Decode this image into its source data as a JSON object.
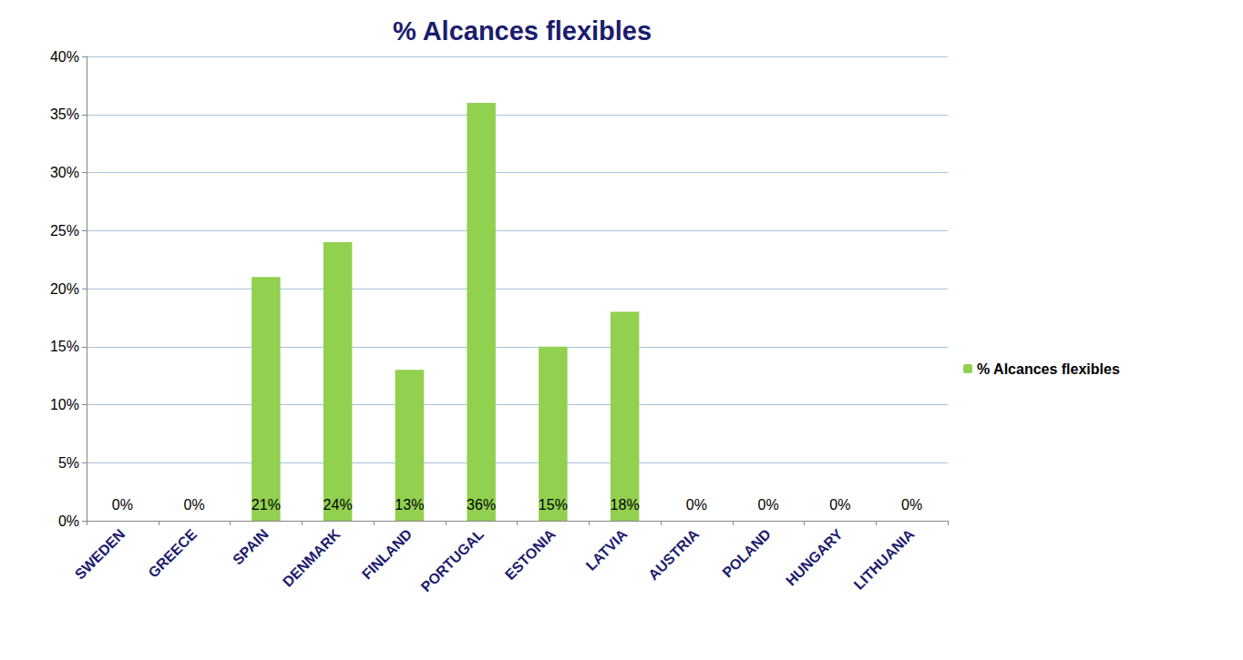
{
  "chart_data": {
    "type": "bar",
    "title": "% Alcances flexibles",
    "categories": [
      "SWEDEN",
      "GREECE",
      "SPAIN",
      "DENMARK",
      "FINLAND",
      "PORTUGAL",
      "ESTONIA",
      "LATVIA",
      "AUSTRIA",
      "POLAND",
      "HUNGARY",
      "LITHUANIA"
    ],
    "series": [
      {
        "name": "% Alcances flexibles",
        "color": "#92d050",
        "values": [
          0,
          0,
          21,
          24,
          13,
          36,
          15,
          18,
          0,
          0,
          0,
          0
        ],
        "value_labels": [
          "0%",
          "0%",
          "21%",
          "24%",
          "13%",
          "36%",
          "15%",
          "18%",
          "0%",
          "0%",
          "0%",
          "0%"
        ]
      }
    ],
    "ylim": [
      0,
      40
    ],
    "yticks": [
      {
        "value": 0,
        "label": "0%"
      },
      {
        "value": 5,
        "label": "5%"
      },
      {
        "value": 10,
        "label": "10%"
      },
      {
        "value": 15,
        "label": "15%"
      },
      {
        "value": 20,
        "label": "20%"
      },
      {
        "value": 25,
        "label": "25%"
      },
      {
        "value": 30,
        "label": "30%"
      },
      {
        "value": 35,
        "label": "35%"
      },
      {
        "value": 40,
        "label": "40%"
      }
    ],
    "grid": true,
    "legend": "right",
    "data_labels": true
  }
}
